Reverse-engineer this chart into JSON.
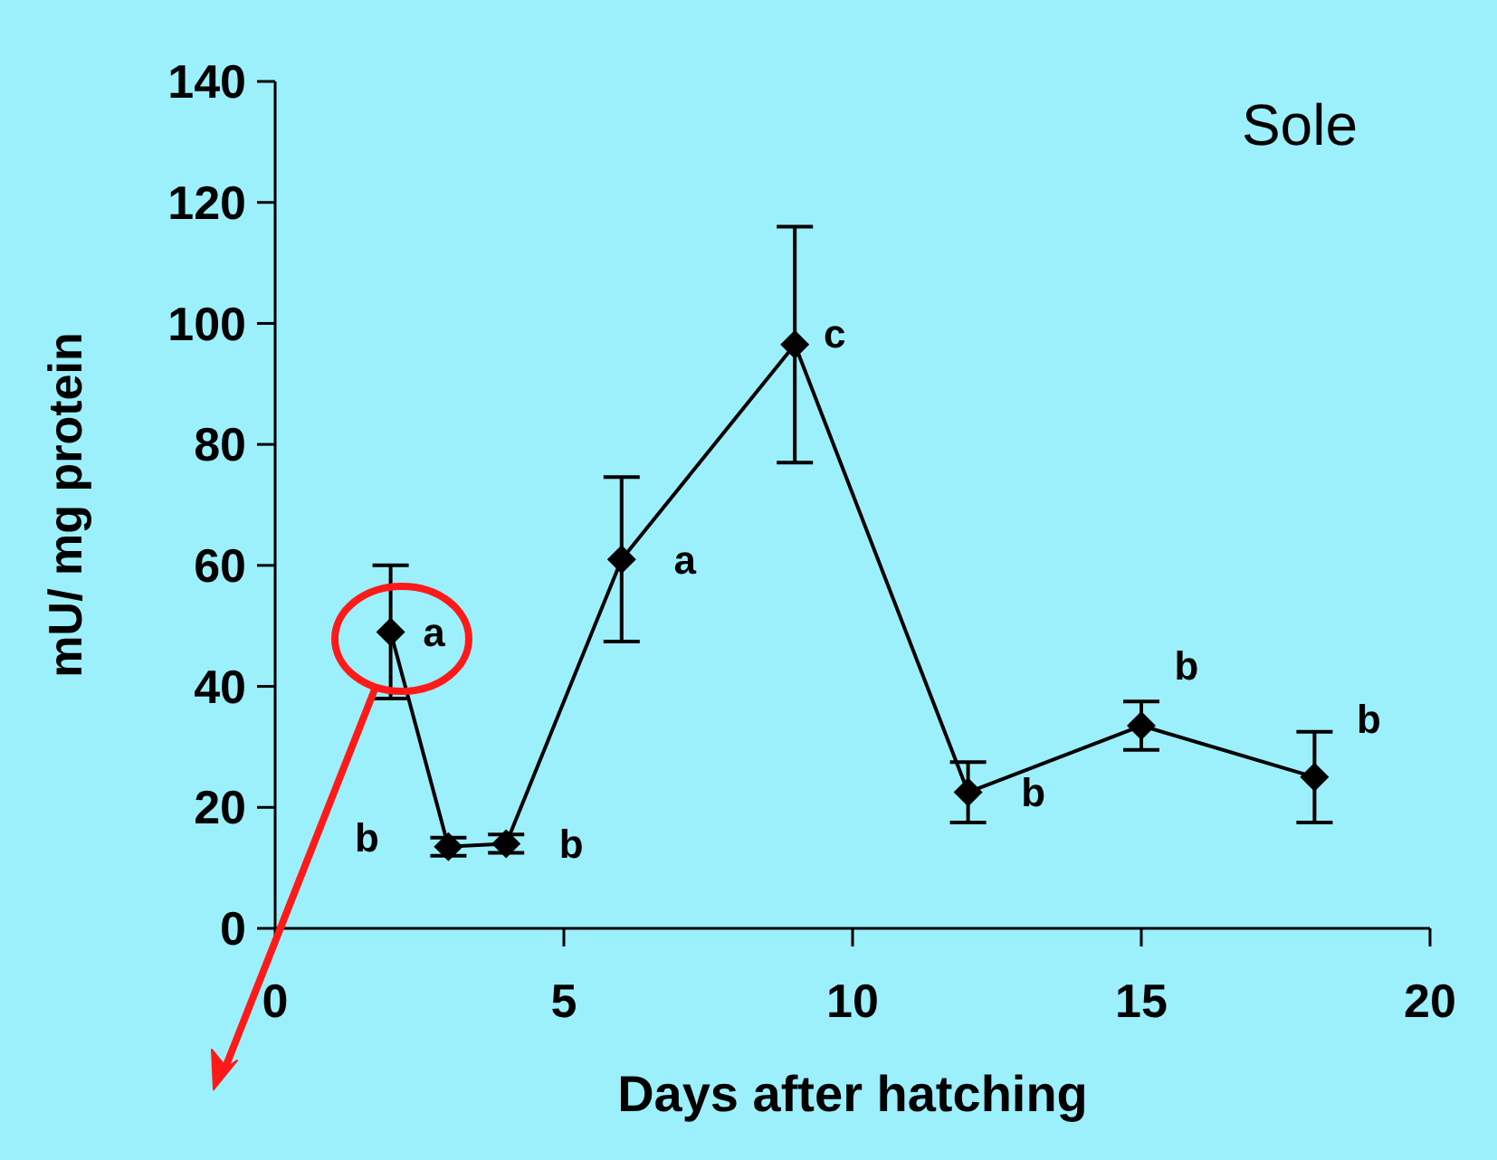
{
  "chart_data": {
    "type": "line",
    "xlabel": "Days after hatching",
    "ylabel": "mU/ mg protein",
    "x": [
      2,
      3,
      4,
      6,
      9,
      12,
      15,
      18
    ],
    "series": [
      {
        "color": "#000000",
        "values": [
          49,
          13.5,
          14,
          61,
          96.5,
          22.5,
          33.5,
          25
        ],
        "errors": [
          11,
          1.5,
          1.5,
          13.6,
          19.5,
          5,
          4,
          7.5
        ]
      }
    ],
    "xlim": [
      0,
      20
    ],
    "xticks": [
      0,
      5,
      10,
      15,
      20
    ],
    "ylim": [
      0,
      140
    ],
    "yticks": [
      0,
      20,
      40,
      60,
      80,
      100,
      120,
      140
    ],
    "grid": false,
    "marker": "diamond",
    "line_style": "solid",
    "annotations": [
      "Sole",
      {
        "text": "a",
        "x": 2,
        "y": 49
      },
      {
        "text": "b",
        "x": 3,
        "y": 13.5
      },
      {
        "text": "b",
        "x": 4,
        "y": 14
      },
      {
        "text": "a",
        "x": 6,
        "y": 61
      },
      {
        "text": "c",
        "x": 9,
        "y": 96.5
      },
      {
        "text": "b",
        "x": 12,
        "y": 22.5
      },
      {
        "text": "b",
        "x": 15,
        "y": 33.5
      },
      {
        "text": "b",
        "x": 18,
        "y": 25
      }
    ]
  }
}
